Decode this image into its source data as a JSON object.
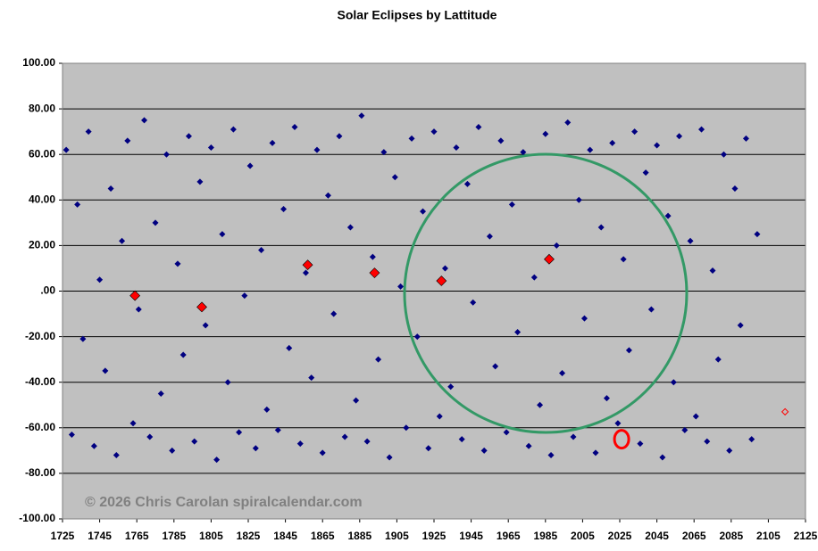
{
  "chart_data": {
    "type": "scatter",
    "title": "Solar Eclipses by Lattitude",
    "annotations": [
      "© 2026 Chris Carolan spiralcalendar.com"
    ],
    "xlim": [
      1725,
      2125
    ],
    "xticks": [
      1725,
      1745,
      1765,
      1785,
      1805,
      1825,
      1845,
      1865,
      1885,
      1905,
      1925,
      1945,
      1965,
      1985,
      2005,
      2025,
      2045,
      2065,
      2085,
      2105,
      2125
    ],
    "ylim": [
      -100,
      100
    ],
    "yticks": [
      {
        "value": 100,
        "label": "100.00"
      },
      {
        "value": 80,
        "label": "80.00"
      },
      {
        "value": 60,
        "label": "60.00"
      },
      {
        "value": 40,
        "label": "40.00"
      },
      {
        "value": 20,
        "label": "20.00"
      },
      {
        "value": 0,
        "label": ".00"
      },
      {
        "value": -20,
        "label": "-20.00"
      },
      {
        "value": -40,
        "label": "-40.00"
      },
      {
        "value": -60,
        "label": "-60.00"
      },
      {
        "value": -80,
        "label": "-80.00"
      },
      {
        "value": -100,
        "label": "-100.00"
      }
    ],
    "grid": true,
    "background": "#c0c0c0",
    "series": [
      {
        "color": "#000080",
        "marker": "diamond",
        "x": [
          1727,
          1730,
          1733,
          1736,
          1739,
          1742,
          1745,
          1748,
          1751,
          1754,
          1757,
          1760,
          1763,
          1766,
          1769,
          1772,
          1775,
          1778,
          1781,
          1784,
          1787,
          1790,
          1793,
          1796,
          1799,
          1802,
          1805,
          1808,
          1811,
          1814,
          1817,
          1820,
          1823,
          1826,
          1829,
          1832,
          1835,
          1838,
          1841,
          1844,
          1847,
          1850,
          1853,
          1856,
          1859,
          1862,
          1865,
          1868,
          1871,
          1874,
          1877,
          1880,
          1883,
          1886,
          1889,
          1892,
          1895,
          1898,
          1901,
          1904,
          1907,
          1910,
          1913,
          1916,
          1919,
          1922,
          1925,
          1928,
          1931,
          1934,
          1937,
          1940,
          1943,
          1946,
          1949,
          1952,
          1955,
          1958,
          1961,
          1964,
          1967,
          1970,
          1973,
          1976,
          1979,
          1982,
          1985,
          1988,
          1991,
          1994,
          1997,
          2000,
          2003,
          2006,
          2009,
          2012,
          2015,
          2018,
          2021,
          2024,
          2027,
          2030,
          2033,
          2036,
          2039,
          2042,
          2045,
          2048,
          2051,
          2054,
          2057,
          2060,
          2063,
          2066,
          2069,
          2072,
          2075,
          2078,
          2081,
          2084,
          2087,
          2090,
          2093,
          2096,
          2099
        ],
        "values": [
          62,
          -63,
          38,
          -21,
          70,
          -68,
          5,
          -35,
          45,
          -72,
          22,
          66,
          -58,
          -8,
          75,
          -64,
          30,
          -45,
          60,
          -70,
          12,
          -28,
          68,
          -66,
          48,
          -15,
          63,
          -74,
          25,
          -40,
          71,
          -62,
          -2,
          55,
          -69,
          18,
          -52,
          65,
          -61,
          36,
          -25,
          72,
          -67,
          8,
          -38,
          62,
          -71,
          42,
          -10,
          68,
          -64,
          28,
          -48,
          77,
          -66,
          15,
          -30,
          61,
          -73,
          50,
          2,
          -60,
          67,
          -20,
          35,
          -69,
          70,
          -55,
          10,
          -42,
          63,
          -65,
          47,
          -5,
          72,
          -70,
          24,
          -33,
          66,
          -62,
          38,
          -18,
          61,
          -68,
          6,
          -50,
          69,
          -72,
          20,
          -36,
          74,
          -64,
          40,
          -12,
          62,
          -71,
          28,
          -47,
          65,
          -58,
          14,
          -26,
          70,
          -67,
          52,
          -8,
          64,
          -73,
          33,
          -40,
          68,
          -61,
          22,
          -55,
          71,
          -66,
          9,
          -30,
          60,
          -70,
          45,
          -15,
          67,
          -65,
          25
        ]
      },
      {
        "color": "#ff0000",
        "marker": "diamond",
        "x": [
          1764,
          1800,
          1857,
          1893,
          1929,
          1987
        ],
        "values": [
          -2,
          -7,
          11.5,
          8,
          4.5,
          14
        ]
      },
      {
        "color": "#ff0000",
        "marker": "hollow-diamond",
        "x": [
          2114
        ],
        "values": [
          -53
        ]
      },
      {
        "color": "#ff0000",
        "marker": "ring",
        "x": [
          2026
        ],
        "values": [
          -65
        ]
      }
    ]
  }
}
